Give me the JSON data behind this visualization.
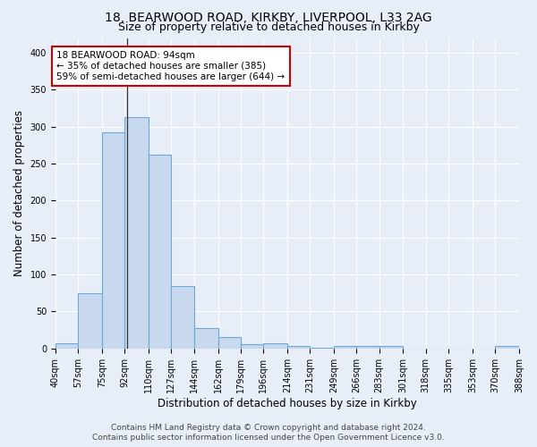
{
  "title_line1": "18, BEARWOOD ROAD, KIRKBY, LIVERPOOL, L33 2AG",
  "title_line2": "Size of property relative to detached houses in Kirkby",
  "xlabel": "Distribution of detached houses by size in Kirkby",
  "ylabel": "Number of detached properties",
  "bar_color": "#c8d8ee",
  "bar_edge_color": "#6aaad4",
  "background_color": "#e8eef8",
  "grid_color": "#ffffff",
  "bin_edges": [
    40,
    57,
    75,
    92,
    110,
    127,
    144,
    162,
    179,
    196,
    214,
    231,
    249,
    266,
    283,
    301,
    318,
    335,
    353,
    370,
    388
  ],
  "bar_heights": [
    7,
    75,
    293,
    313,
    262,
    84,
    28,
    15,
    6,
    7,
    3,
    1,
    4,
    4,
    3,
    0,
    0,
    0,
    0,
    3
  ],
  "property_size": 94,
  "vline_color": "#333333",
  "annotation_text": "18 BEARWOOD ROAD: 94sqm\n← 35% of detached houses are smaller (385)\n59% of semi-detached houses are larger (644) →",
  "annotation_box_color": "#ffffff",
  "annotation_box_edge": "#cc0000",
  "annotation_text_color": "#000000",
  "ylim": [
    0,
    420
  ],
  "yticks": [
    0,
    50,
    100,
    150,
    200,
    250,
    300,
    350,
    400
  ],
  "footer_text": "Contains HM Land Registry data © Crown copyright and database right 2024.\nContains public sector information licensed under the Open Government Licence v3.0.",
  "title_fontsize": 10,
  "subtitle_fontsize": 9,
  "axis_label_fontsize": 8.5,
  "tick_fontsize": 7,
  "annotation_fontsize": 7.5
}
